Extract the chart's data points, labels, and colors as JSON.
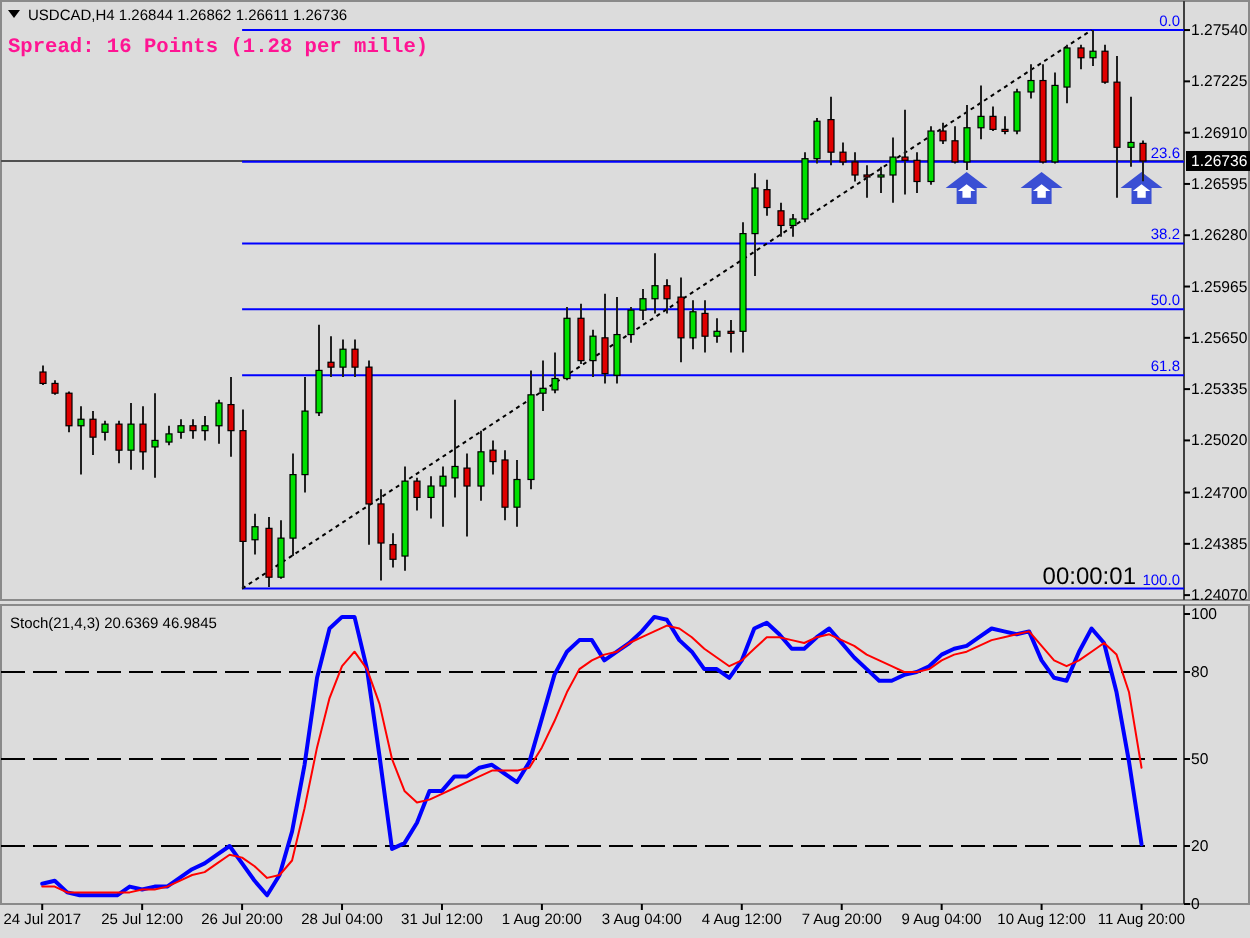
{
  "chart_data": [
    {
      "type": "candlestick",
      "title": "USDCAD,H4 1.26844 1.26862 1.26611 1.26736",
      "categories": [
        "24 Jul 2017",
        null,
        null,
        null,
        null,
        null,
        null,
        null,
        "25 Jul 12:00",
        null,
        null,
        null,
        null,
        null,
        null,
        null,
        "26 Jul 20:00",
        null,
        null,
        null,
        null,
        null,
        null,
        null,
        "28 Jul 04:00",
        null,
        null,
        null,
        null,
        null,
        null,
        null,
        "31 Jul 12:00",
        null,
        null,
        null,
        null,
        null,
        null,
        null,
        "1 Aug 20:00",
        null,
        null,
        null,
        null,
        null,
        null,
        null,
        "3 Aug 04:00",
        null,
        null,
        null,
        null,
        null,
        null,
        null,
        "4 Aug 12:00",
        null,
        null,
        null,
        null,
        null,
        null,
        null,
        "7 Aug 20:00",
        null,
        null,
        null,
        null,
        null,
        null,
        null,
        "9 Aug 04:00",
        null,
        null,
        null,
        null,
        null,
        null,
        null,
        "10 Aug 12:00",
        null,
        null,
        null,
        null,
        null,
        null,
        null,
        "11 Aug 20:00"
      ],
      "ohlc": [
        [
          1.2544,
          1.2548,
          1.2536,
          1.2537
        ],
        [
          1.2537,
          1.2539,
          1.253,
          1.2531
        ],
        [
          1.2531,
          1.2532,
          1.2507,
          1.2511
        ],
        [
          1.2511,
          1.2523,
          1.2481,
          1.2515
        ],
        [
          1.2515,
          1.252,
          1.2493,
          1.2504
        ],
        [
          1.2507,
          1.2514,
          1.2502,
          1.2512
        ],
        [
          1.2512,
          1.2514,
          1.2488,
          1.2496
        ],
        [
          1.2496,
          1.2525,
          1.2484,
          1.2512
        ],
        [
          1.2512,
          1.2523,
          1.2484,
          1.2495
        ],
        [
          1.2498,
          1.2531,
          1.2479,
          1.2502
        ],
        [
          1.2501,
          1.2511,
          1.2499,
          1.2506
        ],
        [
          1.2507,
          1.2515,
          1.2503,
          1.2511
        ],
        [
          1.2511,
          1.2515,
          1.2503,
          1.2508
        ],
        [
          1.2508,
          1.2517,
          1.2502,
          1.2511
        ],
        [
          1.2511,
          1.2527,
          1.25,
          1.2525
        ],
        [
          1.2524,
          1.2541,
          1.2492,
          1.2508
        ],
        [
          1.2508,
          1.2521,
          1.2411,
          1.244
        ],
        [
          1.2441,
          1.2457,
          1.2432,
          1.2449
        ],
        [
          1.2448,
          1.2455,
          1.2412,
          1.2418
        ],
        [
          1.2418,
          1.2453,
          1.2417,
          1.2442
        ],
        [
          1.2442,
          1.2494,
          1.2431,
          1.2481
        ],
        [
          1.2481,
          1.2541,
          1.247,
          1.252
        ],
        [
          1.2519,
          1.2573,
          1.2517,
          1.2545
        ],
        [
          1.255,
          1.2566,
          1.2541,
          1.2547
        ],
        [
          1.2547,
          1.2564,
          1.2541,
          1.2558
        ],
        [
          1.2558,
          1.2564,
          1.2541,
          1.2547
        ],
        [
          1.2547,
          1.2551,
          1.2438,
          1.2463
        ],
        [
          1.2463,
          1.2472,
          1.2416,
          1.2439
        ],
        [
          1.2438,
          1.2445,
          1.2424,
          1.2429
        ],
        [
          1.2431,
          1.2486,
          1.2422,
          1.2477
        ],
        [
          1.2477,
          1.2479,
          1.2459,
          1.2467
        ],
        [
          1.2467,
          1.248,
          1.2454,
          1.2474
        ],
        [
          1.2474,
          1.2486,
          1.2449,
          1.248
        ],
        [
          1.2479,
          1.2527,
          1.2467,
          1.2486
        ],
        [
          1.2485,
          1.2494,
          1.2443,
          1.2474
        ],
        [
          1.2474,
          1.2508,
          1.2465,
          1.2495
        ],
        [
          1.2496,
          1.2502,
          1.2481,
          1.2489
        ],
        [
          1.249,
          1.2496,
          1.2453,
          1.2461
        ],
        [
          1.2461,
          1.249,
          1.2449,
          1.2478
        ],
        [
          1.2478,
          1.2545,
          1.2472,
          1.253
        ],
        [
          1.2531,
          1.2551,
          1.252,
          1.2534
        ],
        [
          1.2533,
          1.2556,
          1.2531,
          1.254
        ],
        [
          1.254,
          1.2584,
          1.2539,
          1.2577
        ],
        [
          1.2577,
          1.2586,
          1.2549,
          1.2551
        ],
        [
          1.2551,
          1.257,
          1.2541,
          1.2566
        ],
        [
          1.2565,
          1.2592,
          1.2537,
          1.2543
        ],
        [
          1.2542,
          1.259,
          1.2537,
          1.2567
        ],
        [
          1.2567,
          1.2584,
          1.2562,
          1.2582
        ],
        [
          1.2582,
          1.2595,
          1.2576,
          1.2589
        ],
        [
          1.2589,
          1.2617,
          1.258,
          1.2597
        ],
        [
          1.2597,
          1.2601,
          1.258,
          1.2589
        ],
        [
          1.259,
          1.2602,
          1.255,
          1.2565
        ],
        [
          1.2565,
          1.2588,
          1.2558,
          1.2581
        ],
        [
          1.258,
          1.2588,
          1.2556,
          1.2566
        ],
        [
          1.2566,
          1.2577,
          1.2562,
          1.2569
        ],
        [
          1.2569,
          1.2576,
          1.2556,
          1.2568
        ],
        [
          1.2569,
          1.2636,
          1.2556,
          1.2629
        ],
        [
          1.2629,
          1.2666,
          1.2603,
          1.2657
        ],
        [
          1.2656,
          1.2662,
          1.264,
          1.2645
        ],
        [
          1.2643,
          1.2648,
          1.2627,
          1.2634
        ],
        [
          1.2634,
          1.2641,
          1.2627,
          1.2638
        ],
        [
          1.2638,
          1.2679,
          1.2636,
          1.2675
        ],
        [
          1.2675,
          1.27,
          1.2672,
          1.2698
        ],
        [
          1.2699,
          1.2713,
          1.2671,
          1.2679
        ],
        [
          1.2679,
          1.2685,
          1.2671,
          1.2673
        ],
        [
          1.2673,
          1.2679,
          1.2661,
          1.2665
        ],
        [
          1.2665,
          1.2671,
          1.2651,
          1.2664
        ],
        [
          1.2664,
          1.267,
          1.2654,
          1.2665
        ],
        [
          1.2665,
          1.2688,
          1.2648,
          1.2676
        ],
        [
          1.2676,
          1.2705,
          1.2653,
          1.2674
        ],
        [
          1.2674,
          1.2679,
          1.2654,
          1.2661
        ],
        [
          1.2661,
          1.2695,
          1.2659,
          1.2692
        ],
        [
          1.2692,
          1.2697,
          1.2684,
          1.2686
        ],
        [
          1.2686,
          1.2695,
          1.2672,
          1.2673
        ],
        [
          1.2673,
          1.2708,
          1.2668,
          1.2694
        ],
        [
          1.2694,
          1.272,
          1.2687,
          1.2701
        ],
        [
          1.2701,
          1.2707,
          1.2692,
          1.2693
        ],
        [
          1.2693,
          1.2701,
          1.269,
          1.2692
        ],
        [
          1.2692,
          1.2718,
          1.269,
          1.2716
        ],
        [
          1.2716,
          1.2733,
          1.2712,
          1.2723
        ],
        [
          1.2723,
          1.2733,
          1.2672,
          1.2673
        ],
        [
          1.2673,
          1.2728,
          1.2672,
          1.272
        ],
        [
          1.2719,
          1.2745,
          1.2709,
          1.2743
        ],
        [
          1.2743,
          1.2745,
          1.273,
          1.2737
        ],
        [
          1.2737,
          1.2754,
          1.2732,
          1.2741
        ],
        [
          1.2741,
          1.2745,
          1.2721,
          1.2722
        ],
        [
          1.2722,
          1.2738,
          1.2651,
          1.2682
        ],
        [
          1.2682,
          1.2713,
          1.267,
          1.2685
        ],
        [
          1.26844,
          1.26862,
          1.26611,
          1.26736
        ]
      ],
      "colors": [
        "#e00000",
        "#e00000",
        "#e00000",
        "#00e000",
        "#e00000",
        "#00e000",
        "#e00000",
        "#00e000",
        "#e00000",
        "#00e000",
        "#00e000",
        "#00e000",
        "#e00000",
        "#00e000",
        "#00e000",
        "#e00000",
        "#e00000",
        "#00e000",
        "#e00000",
        "#00e000",
        "#00e000",
        "#00e000",
        "#00e000",
        "#e00000",
        "#00e000",
        "#e00000",
        "#e00000",
        "#e00000",
        "#e00000",
        "#00e000",
        "#e00000",
        "#00e000",
        "#00e000",
        "#00e000",
        "#e00000",
        "#00e000",
        "#e00000",
        "#e00000",
        "#00e000",
        "#00e000",
        "#00e000",
        "#00e000",
        "#00e000",
        "#e00000",
        "#00e000",
        "#e00000",
        "#00e000",
        "#00e000",
        "#00e000",
        "#00e000",
        "#e00000",
        "#e00000",
        "#00e000",
        "#e00000",
        "#00e000",
        "#e00000",
        "#00e000",
        "#00e000",
        "#e00000",
        "#e00000",
        "#00e000",
        "#00e000",
        "#00e000",
        "#e00000",
        "#e00000",
        "#e00000",
        "#e00000",
        "#00e000",
        "#00e000",
        "#e00000",
        "#e00000",
        "#00e000",
        "#e00000",
        "#e00000",
        "#00e000",
        "#00e000",
        "#e00000",
        "#e00000",
        "#00e000",
        "#00e000",
        "#e00000",
        "#00e000",
        "#00e000",
        "#e00000",
        "#00e000",
        "#e00000",
        "#e00000",
        "#00e000",
        "#e00000"
      ],
      "series": [
        {
          "type": "line",
          "line_style": "dotted",
          "color": "#000000",
          "values": [
            null,
            null,
            null,
            null,
            null,
            null,
            null,
            null,
            null,
            null,
            null,
            null,
            null,
            null,
            null,
            null,
            1.2411,
            null,
            null,
            null,
            null,
            null,
            null,
            null,
            null,
            null,
            null,
            null,
            null,
            null,
            null,
            null,
            null,
            null,
            null,
            null,
            null,
            null,
            null,
            null,
            null,
            null,
            null,
            null,
            null,
            null,
            null,
            null,
            null,
            null,
            null,
            null,
            null,
            null,
            null,
            null,
            null,
            null,
            null,
            null,
            null,
            null,
            null,
            null,
            null,
            null,
            null,
            null,
            null,
            null,
            null,
            null,
            null,
            null,
            null,
            null,
            null,
            null,
            null,
            null,
            null,
            null,
            null,
            null,
            1.2754,
            null,
            null,
            null,
            null
          ]
        },
        {
          "type": "scatter",
          "marker": "triangle",
          "color": "#3a4fd4",
          "values": [
            null,
            null,
            null,
            null,
            null,
            null,
            null,
            null,
            null,
            null,
            null,
            null,
            null,
            null,
            null,
            null,
            null,
            null,
            null,
            null,
            null,
            null,
            null,
            null,
            null,
            null,
            null,
            null,
            null,
            null,
            null,
            null,
            null,
            null,
            null,
            null,
            null,
            null,
            null,
            null,
            null,
            null,
            null,
            null,
            null,
            null,
            null,
            null,
            null,
            null,
            null,
            null,
            null,
            null,
            null,
            null,
            null,
            null,
            null,
            null,
            null,
            null,
            null,
            null,
            null,
            null,
            null,
            null,
            null,
            null,
            null,
            null,
            null,
            null,
            1.2657,
            null,
            null,
            null,
            null,
            null,
            1.2657,
            null,
            null,
            null,
            null,
            null,
            null,
            null,
            1.2657
          ]
        }
      ],
      "ylim": [
        1.2404,
        1.277
      ],
      "yticks": [
        {
          "value": 1.2754,
          "label": "1.27540"
        },
        {
          "value": 1.27225,
          "label": "1.27225"
        },
        {
          "value": 1.2691,
          "label": "1.26910"
        },
        {
          "value": 1.26595,
          "label": "1.26595"
        },
        {
          "value": 1.2628,
          "label": "1.26280"
        },
        {
          "value": 1.25965,
          "label": "1.25965"
        },
        {
          "value": 1.2565,
          "label": "1.25650"
        },
        {
          "value": 1.25335,
          "label": "1.25335"
        },
        {
          "value": 1.2502,
          "label": "1.25020"
        },
        {
          "value": 1.247,
          "label": "1.24700"
        },
        {
          "value": 1.24385,
          "label": "1.24385"
        },
        {
          "value": 1.2407,
          "label": "1.24070"
        }
      ],
      "y2lim": [
        102.04,
        -4.66
      ],
      "ref_lines": [
        {
          "axis": "y",
          "value": 1.26736,
          "label": "1.26736",
          "color": "#505050"
        },
        {
          "axis": "y2",
          "value": 0,
          "label": "0.0",
          "color": "#0000ff"
        },
        {
          "axis": "y2",
          "value": 23.6,
          "label": "23.6",
          "color": "#0000ff"
        },
        {
          "axis": "y2",
          "value": 38.2,
          "label": "38.2",
          "color": "#0000ff"
        },
        {
          "axis": "y2",
          "value": 50,
          "label": "50.0",
          "color": "#0000ff"
        },
        {
          "axis": "y2",
          "value": 61.8,
          "label": "61.8",
          "color": "#0000ff"
        },
        {
          "axis": "y2",
          "value": 100,
          "label": "100.0",
          "color": "#0000ff"
        }
      ],
      "annotations": [
        "Spread: 16 Points (1.28 per mille)",
        "00:00:01"
      ],
      "tick_labels": "y"
    },
    {
      "type": "line",
      "title": "Stoch(21,4,3) 20.6369 46.9845",
      "categories": [
        "24 Jul 2017",
        null,
        null,
        null,
        null,
        null,
        null,
        null,
        "25 Jul 12:00",
        null,
        null,
        null,
        null,
        null,
        null,
        null,
        "26 Jul 20:00",
        null,
        null,
        null,
        null,
        null,
        null,
        null,
        "28 Jul 04:00",
        null,
        null,
        null,
        null,
        null,
        null,
        null,
        "31 Jul 12:00",
        null,
        null,
        null,
        null,
        null,
        null,
        null,
        "1 Aug 20:00",
        null,
        null,
        null,
        null,
        null,
        null,
        null,
        "3 Aug 04:00",
        null,
        null,
        null,
        null,
        null,
        null,
        null,
        "4 Aug 12:00",
        null,
        null,
        null,
        null,
        null,
        null,
        null,
        "7 Aug 20:00",
        null,
        null,
        null,
        null,
        null,
        null,
        null,
        "9 Aug 04:00",
        null,
        null,
        null,
        null,
        null,
        null,
        null,
        "10 Aug 12:00",
        null,
        null,
        null,
        null,
        null,
        null,
        null,
        "11 Aug 20:00"
      ],
      "series": [
        {
          "color": "#0000ff",
          "values": [
            7,
            8,
            4,
            3,
            3,
            3,
            3,
            6,
            5,
            6,
            6,
            9,
            12,
            14,
            17,
            20,
            14,
            8,
            3,
            10,
            25,
            48,
            78,
            95,
            99,
            99,
            81,
            51,
            19,
            21,
            28,
            39,
            39,
            44,
            44,
            47,
            48,
            45,
            42,
            49,
            64,
            79,
            87,
            91,
            91,
            84,
            87,
            90,
            94,
            99,
            98,
            91,
            87,
            81,
            81,
            78,
            84,
            95,
            97,
            93,
            88,
            88,
            92,
            95,
            90,
            85,
            81,
            77,
            77,
            79,
            80,
            82,
            86,
            88,
            89,
            92,
            95,
            94,
            93,
            94,
            84,
            78,
            77,
            87,
            95,
            90,
            73,
            49,
            20.6369
          ]
        },
        {
          "color": "#ff0000",
          "values": [
            6,
            6,
            4,
            4,
            4,
            4,
            4,
            4,
            5,
            5,
            6,
            8,
            10,
            11,
            14,
            17,
            16,
            13,
            9,
            10,
            15,
            33,
            54,
            71,
            82,
            87,
            81,
            69,
            50,
            39,
            35,
            36,
            38,
            40,
            42,
            44,
            46,
            46,
            46,
            47,
            54,
            63,
            73,
            81,
            84,
            86,
            87,
            90,
            92,
            94,
            96,
            95,
            92,
            88,
            85,
            82,
            84,
            88,
            92,
            92,
            91,
            90,
            92,
            93,
            91,
            89,
            86,
            84,
            82,
            80,
            80,
            81,
            84,
            86,
            87,
            89,
            91,
            92,
            93,
            94,
            89,
            84,
            82,
            84,
            87,
            90,
            86,
            73,
            46.9845
          ]
        }
      ],
      "ylim": [
        0,
        100
      ],
      "yticks": [
        0,
        20,
        50,
        80,
        100
      ],
      "ref_lines": [
        {
          "axis": "y",
          "value": 80,
          "color": "#000000",
          "line_style": "dashed"
        },
        {
          "axis": "y",
          "value": 50,
          "color": "#000000",
          "line_style": "dashed"
        },
        {
          "axis": "y",
          "value": 20,
          "color": "#000000",
          "line_style": "dashed"
        }
      ]
    }
  ]
}
